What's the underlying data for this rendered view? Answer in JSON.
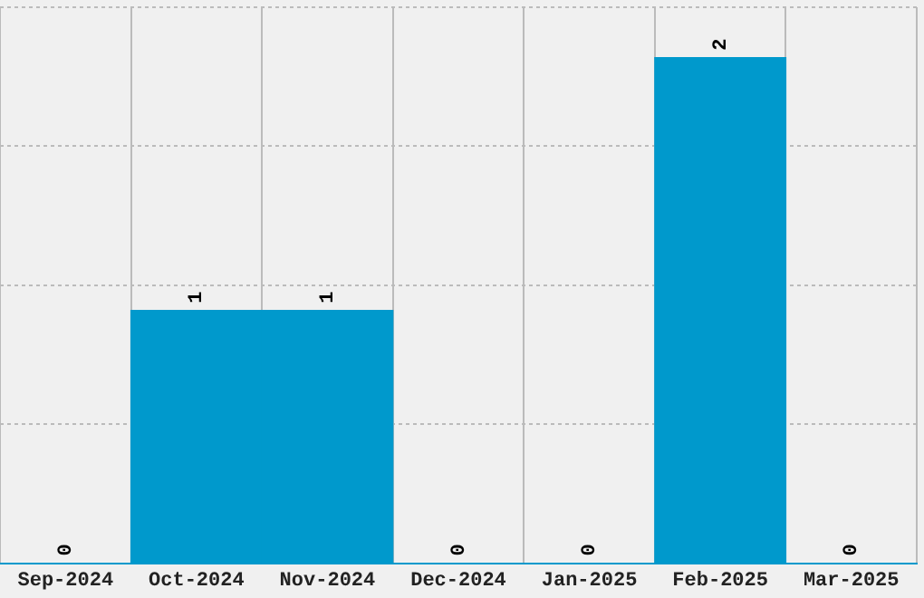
{
  "chart_data": {
    "type": "bar",
    "categories": [
      "Sep-2024",
      "Oct-2024",
      "Nov-2024",
      "Dec-2024",
      "Jan-2025",
      "Feb-2025",
      "Mar-2025"
    ],
    "values": [
      0,
      1,
      1,
      0,
      0,
      2,
      0
    ],
    "color": "#0099cc",
    "ylim": [
      0,
      2.2
    ],
    "yticks": [
      {
        "value": 0,
        "label": null
      },
      {
        "value": 0.55,
        "label": null
      },
      {
        "value": 1.1,
        "label": null
      },
      {
        "value": 1.65,
        "label": null
      },
      {
        "value": 2.2,
        "label": null
      }
    ],
    "tick_labels": "x",
    "grid": true,
    "data_labels": true,
    "legend": false
  }
}
